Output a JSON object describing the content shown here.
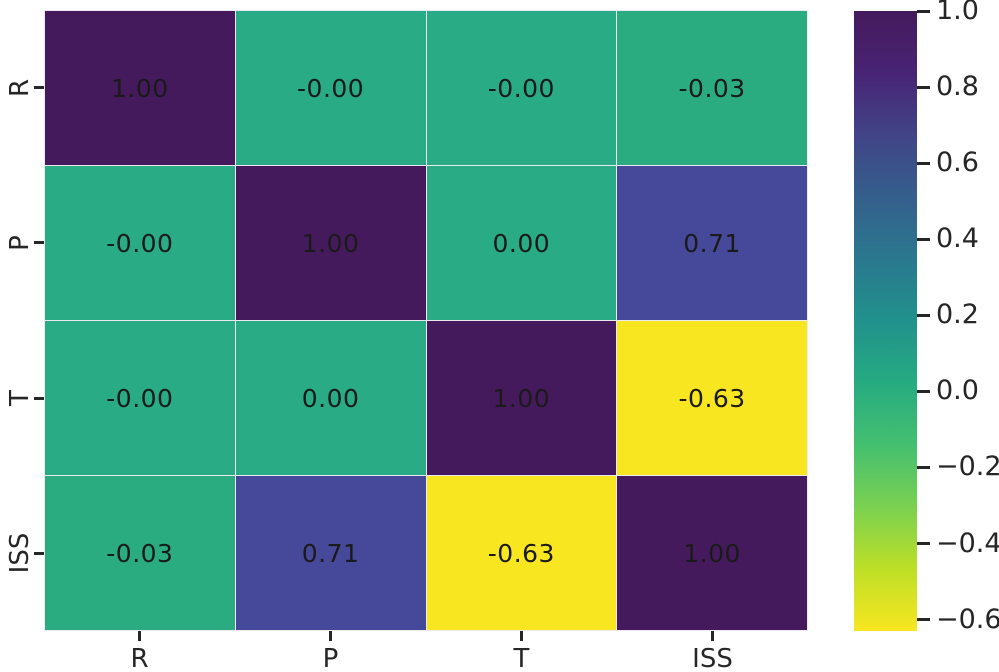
{
  "figure": {
    "background_color": "#ffffff",
    "annotation_text_color": "#1a1a1a",
    "grid_line_color": "#ece9f2"
  },
  "chart_data": {
    "type": "heatmap",
    "title": "",
    "xlabel": "",
    "ylabel": "",
    "categories": [
      "R",
      "P",
      "T",
      "ISS"
    ],
    "matrix": [
      [
        1.0,
        -0.0,
        -0.0,
        -0.03
      ],
      [
        -0.0,
        1.0,
        0.0,
        0.71
      ],
      [
        -0.0,
        0.0,
        1.0,
        -0.63
      ],
      [
        -0.03,
        0.71,
        -0.63,
        1.0
      ]
    ],
    "cell_labels": [
      [
        "1.00",
        "-0.00",
        "-0.00",
        "-0.03"
      ],
      [
        "-0.00",
        "1.00",
        "0.00",
        "0.71"
      ],
      [
        "-0.00",
        "0.00",
        "1.00",
        "-0.63"
      ],
      [
        "-0.03",
        "0.71",
        "-0.63",
        "1.00"
      ]
    ],
    "cell_colors": [
      [
        "#451a5c",
        "#29ab85",
        "#29ab85",
        "#2bac80"
      ],
      [
        "#29ab85",
        "#451a5c",
        "#29ab85",
        "#46489a"
      ],
      [
        "#29ab85",
        "#29ab85",
        "#451a5c",
        "#f8e621"
      ],
      [
        "#2bac80",
        "#46489a",
        "#f8e621",
        "#451a5c"
      ]
    ],
    "colormap": {
      "name": "viridis_r",
      "vmin": -0.63,
      "vmax": 1.0
    },
    "colorbar": {
      "gradient_top_to_bottom": [
        "#451a5c",
        "#482475",
        "#414487",
        "#355f8d",
        "#2a788e",
        "#21918c",
        "#26ab81",
        "#44bf70",
        "#7ad151",
        "#bddf26",
        "#f8e621"
      ],
      "ticks": [
        {
          "label": "1.0",
          "value": 1.0
        },
        {
          "label": "0.8",
          "value": 0.8
        },
        {
          "label": "0.6",
          "value": 0.6
        },
        {
          "label": "0.4",
          "value": 0.4
        },
        {
          "label": "0.2",
          "value": 0.2
        },
        {
          "label": "0.0",
          "value": 0.0
        },
        {
          "label": "−0.2",
          "value": -0.2
        },
        {
          "label": "−0.4",
          "value": -0.4
        },
        {
          "label": "−0.6",
          "value": -0.6
        }
      ]
    },
    "legend_position": "right-colorbar",
    "grid": false
  }
}
